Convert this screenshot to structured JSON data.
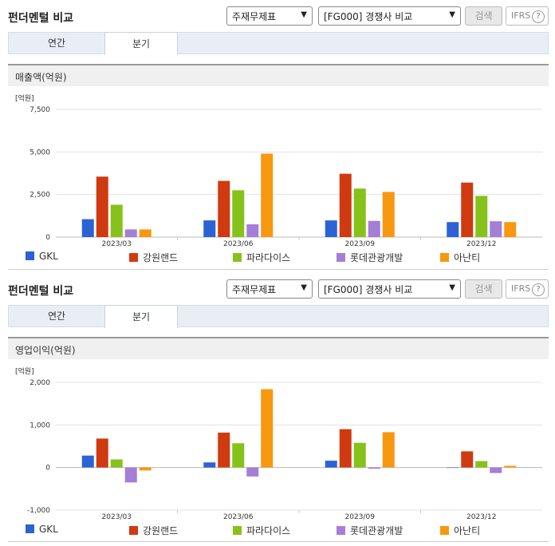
{
  "sections": [
    {
      "title": "펀더멘털 비교",
      "select_indicator": "주재무제표",
      "select_compare": "[FG000] 경쟁사 비교",
      "search_label": "검색",
      "ifrs_label": "IFRS",
      "tabs": [
        "연간",
        "분기"
      ],
      "active_tab": "분기",
      "panel_title": "매출액(억원)"
    },
    {
      "title": "펀더멘털 비교",
      "select_indicator": "주재무제표",
      "select_compare": "[FG000] 경쟁사 비교",
      "search_label": "검색",
      "ifrs_label": "IFRS",
      "tabs": [
        "연간",
        "분기"
      ],
      "active_tab": "분기",
      "panel_title": "영업이익(억원)"
    }
  ],
  "chart_data": [
    {
      "type": "bar",
      "unit_label": "[억원]",
      "categories": [
        "2023/03",
        "2023/06",
        "2023/09",
        "2023/12"
      ],
      "ylim": [
        0,
        7500
      ],
      "yticks": [
        "0",
        "2,500",
        "5,000",
        "7,500"
      ],
      "ytick_values": [
        0,
        2500,
        5000,
        7500
      ],
      "legend_position": "bottom",
      "series": [
        {
          "name": "GKL",
          "color": "#2b63d4",
          "values": [
            1050,
            980,
            980,
            880
          ]
        },
        {
          "name": "강원랜드",
          "color": "#d03a10",
          "values": [
            3550,
            3300,
            3720,
            3200
          ]
        },
        {
          "name": "파라다이스",
          "color": "#86c21a",
          "values": [
            1900,
            2750,
            2850,
            2420
          ]
        },
        {
          "name": "롯데관광개발",
          "color": "#a57ed6",
          "values": [
            450,
            750,
            950,
            930
          ]
        },
        {
          "name": "아난티",
          "color": "#f7980f",
          "values": [
            450,
            4900,
            2650,
            880
          ]
        }
      ]
    },
    {
      "type": "bar",
      "unit_label": "[억원]",
      "categories": [
        "2023/03",
        "2023/06",
        "2023/09",
        "2023/12"
      ],
      "ylim": [
        -1000,
        2000
      ],
      "yticks": [
        "-1,000",
        "0",
        "1,000",
        "2,000"
      ],
      "ytick_values": [
        -1000,
        0,
        1000,
        2000
      ],
      "legend_position": "bottom",
      "series": [
        {
          "name": "GKL",
          "color": "#2b63d4",
          "values": [
            280,
            120,
            160,
            0
          ]
        },
        {
          "name": "강원랜드",
          "color": "#d03a10",
          "values": [
            680,
            820,
            900,
            380
          ]
        },
        {
          "name": "파라다이스",
          "color": "#86c21a",
          "values": [
            190,
            570,
            580,
            150
          ]
        },
        {
          "name": "롯데관광개발",
          "color": "#a57ed6",
          "values": [
            -350,
            -210,
            -30,
            -130
          ]
        },
        {
          "name": "아난티",
          "color": "#f7980f",
          "values": [
            -70,
            1840,
            830,
            40
          ]
        }
      ]
    }
  ]
}
